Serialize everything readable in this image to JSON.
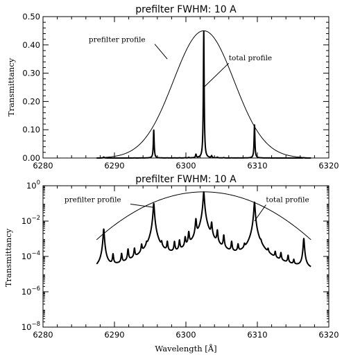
{
  "chart_data": [
    {
      "type": "line",
      "title": "prefilter FWHM: 10 A",
      "xlabel": "",
      "ylabel": "Transmittancy",
      "xlim": [
        6280,
        6320
      ],
      "ylim": [
        0,
        0.5
      ],
      "yscale": "linear",
      "x_ticks": [
        6280,
        6290,
        6300,
        6310,
        6320
      ],
      "y_ticks": [
        {
          "value": 0.0,
          "label": "0.00"
        },
        {
          "value": 0.1,
          "label": "0.10"
        },
        {
          "value": 0.2,
          "label": "0.20"
        },
        {
          "value": 0.3,
          "label": "0.30"
        },
        {
          "value": 0.4,
          "label": "0.40"
        },
        {
          "value": 0.5,
          "label": "0.50"
        }
      ],
      "series": [
        {
          "name": "prefilter profile",
          "kind": "gaussian",
          "center": 6302.5,
          "fwhm": 10,
          "peak": 0.45,
          "x_range": [
            6287.5,
            6317.5
          ],
          "style": "thin"
        },
        {
          "name": "total profile",
          "kind": "comb",
          "x_range": [
            6287.5,
            6317.5
          ],
          "peaks": [
            6288.5,
            6289.8,
            6291.0,
            6291.9,
            6292.8,
            6293.8,
            6294.5,
            6295.5,
            6296.6,
            6297.4,
            6298.4,
            6299.1,
            6299.9,
            6300.4,
            6301.4,
            6302.5,
            6303.6,
            6304.4,
            6305.3,
            6306.4,
            6307.3,
            6308.2,
            6309.6,
            6310.5,
            6311.5,
            6312.5,
            6313.3,
            6314.3,
            6315.1,
            6316.5
          ],
          "peak_values": [
            0.0035,
            0.0001,
            0.0001,
            0.0002,
            0.0002,
            0.0003,
            0.0002,
            0.099,
            0.0003,
            0.0005,
            0.0005,
            0.0006,
            0.0009,
            0.002,
            0.012,
            0.448,
            0.007,
            0.0025,
            0.0013,
            0.0005,
            0.0003,
            0.0002,
            0.117,
            0.0002,
            0.0001,
            0.0001,
            0.0001,
            7e-05,
            3e-05,
            0.001
          ],
          "baseline": 1e-06,
          "style": "thick"
        }
      ],
      "annotations": [
        {
          "text": "prefilter profile",
          "x": 6286.4,
          "y": 0.41,
          "anchor": "start",
          "points_to": [
            6297.4,
            0.35
          ]
        },
        {
          "text": "total profile",
          "x": 6306.0,
          "y": 0.345,
          "anchor": "start",
          "points_to": [
            6302.5,
            0.25
          ]
        }
      ]
    },
    {
      "type": "line",
      "title": "prefilter FWHM: 10 A",
      "xlabel": "Wavelength [Å]",
      "ylabel": "Transmittancy",
      "xlim": [
        6280,
        6320
      ],
      "ylim": [
        1e-08,
        1
      ],
      "yscale": "log",
      "x_ticks": [
        6280,
        6290,
        6300,
        6310,
        6320
      ],
      "y_ticks": [
        {
          "value": 1e-08,
          "base": "10",
          "exp": "−8"
        },
        {
          "value": 1e-06,
          "base": "10",
          "exp": "−6"
        },
        {
          "value": 0.0001,
          "base": "10",
          "exp": "−4"
        },
        {
          "value": 0.01,
          "base": "10",
          "exp": "−2"
        },
        {
          "value": 1,
          "base": "10",
          "exp": "0"
        }
      ],
      "series": [
        {
          "name": "prefilter profile",
          "kind": "gaussian",
          "center": 6302.5,
          "fwhm": 10,
          "peak": 0.45,
          "x_range": [
            6287.5,
            6317.5
          ],
          "style": "thin"
        },
        {
          "name": "total profile",
          "kind": "comb",
          "x_range": [
            6287.5,
            6317.5
          ],
          "peaks": [
            6288.5,
            6289.8,
            6291.0,
            6291.9,
            6292.8,
            6293.8,
            6294.5,
            6295.5,
            6296.6,
            6297.4,
            6298.4,
            6299.1,
            6299.9,
            6300.4,
            6301.4,
            6302.5,
            6303.6,
            6304.4,
            6305.3,
            6306.4,
            6307.3,
            6308.2,
            6309.6,
            6310.5,
            6311.5,
            6312.5,
            6313.3,
            6314.3,
            6315.1,
            6316.5
          ],
          "peak_values": [
            0.0035,
            0.0001,
            0.0001,
            0.0002,
            0.0002,
            0.0003,
            0.0002,
            0.099,
            0.0003,
            0.0005,
            0.0005,
            0.0006,
            0.0009,
            0.002,
            0.012,
            0.448,
            0.007,
            0.0025,
            0.0013,
            0.0005,
            0.0003,
            0.0002,
            0.117,
            0.0002,
            0.0001,
            0.0001,
            0.0001,
            7e-05,
            3e-05,
            0.001
          ],
          "baseline": 1e-06,
          "style": "thick"
        }
      ],
      "annotations": [
        {
          "text": "prefilter profile",
          "x": 6283.0,
          "y": 0.12,
          "anchor": "start",
          "points_to": [
            6295.5,
            0.06
          ]
        },
        {
          "text": "total profile",
          "x": 6311.2,
          "y": 0.12,
          "anchor": "start",
          "points_to": [
            6309.6,
            0.01
          ]
        }
      ]
    }
  ]
}
